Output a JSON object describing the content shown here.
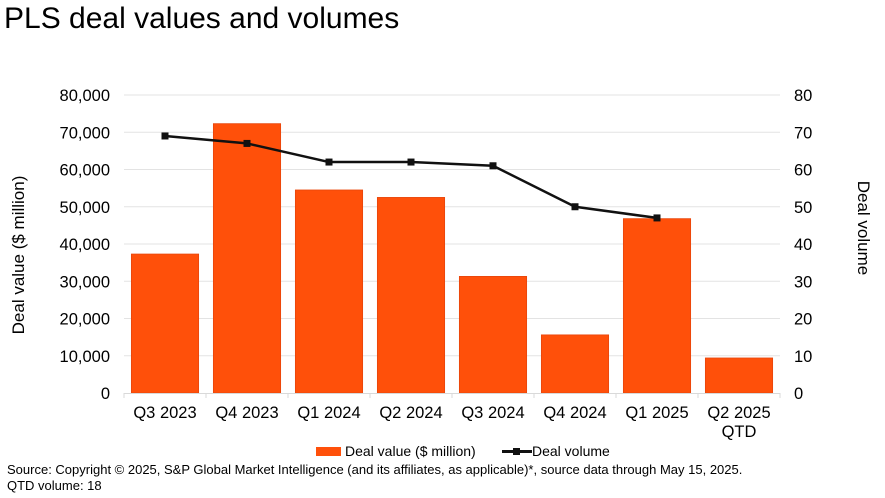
{
  "chart_data": {
    "type": "bar",
    "title": "PLS deal values and volumes",
    "categories": [
      "Q3 2023",
      "Q4 2023",
      "Q1 2024",
      "Q2 2024",
      "Q3 2024",
      "Q4 2024",
      "Q1 2025",
      "Q2 2025\nQTD"
    ],
    "category_lines": [
      [
        "Q3 2023"
      ],
      [
        "Q4 2023"
      ],
      [
        "Q1 2024"
      ],
      [
        "Q2 2024"
      ],
      [
        "Q3 2024"
      ],
      [
        "Q4 2024"
      ],
      [
        "Q1 2025"
      ],
      [
        "Q2 2025",
        "QTD"
      ]
    ],
    "series": [
      {
        "name": "Deal value ($ million)",
        "type": "bar",
        "axis": "left",
        "color": "#FF500A",
        "values": [
          37300,
          72300,
          54500,
          52500,
          31300,
          15600,
          46800,
          9400
        ]
      },
      {
        "name": "Deal volume",
        "type": "line",
        "axis": "right",
        "color": "#111111",
        "marker": "square",
        "values": [
          69,
          67,
          62,
          62,
          61,
          50,
          47,
          null
        ]
      }
    ],
    "y_left": {
      "label": "Deal value ($ million)",
      "range": [
        0,
        80000
      ],
      "step": 10000,
      "tick_labels": [
        "0",
        "10,000",
        "20,000",
        "30,000",
        "40,000",
        "50,000",
        "60,000",
        "70,000",
        "80,000"
      ]
    },
    "y_right": {
      "label": "Deal volume",
      "range": [
        0,
        80
      ],
      "step": 10,
      "tick_labels": [
        "0",
        "10",
        "20",
        "30",
        "40",
        "50",
        "60",
        "70",
        "80"
      ]
    },
    "grid": true,
    "legend_position": "bottom"
  },
  "header": {
    "title": "PLS deal values and volumes"
  },
  "legend": {
    "bar_label": "Deal value ($ million)",
    "line_label": "Deal volume"
  },
  "footer": {
    "source": "Source: Copyright © 2025, S&P Global Market Intelligence (and its affiliates, as applicable)*, source data through May 15, 2025.",
    "note": "QTD volume: 18"
  }
}
